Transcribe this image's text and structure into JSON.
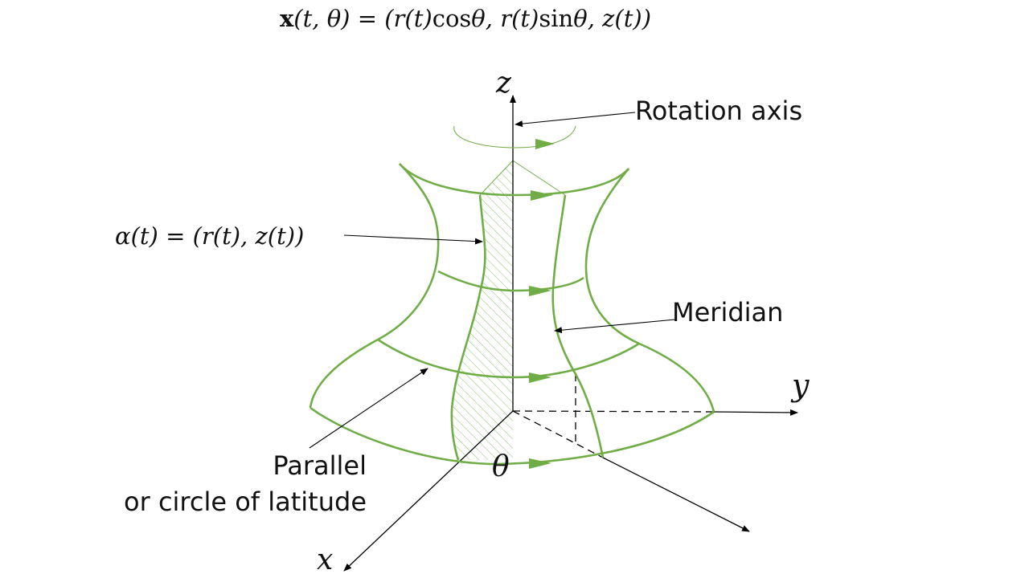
{
  "colors": {
    "accent": "#70ad47",
    "ink": "#000000"
  },
  "formula": {
    "bold_x": "x",
    "args": "(t, θ) = (",
    "r1": "r",
    "t1": "(t)",
    "cos": "cos",
    "theta1": "θ",
    "comma1": ", ",
    "r2": "r",
    "t2": "(t)",
    "sin": "sin",
    "theta2": "θ",
    "comma2": ", ",
    "z": "z",
    "tail": "(t))"
  },
  "axes": {
    "x": "x",
    "y": "y",
    "z": "z",
    "theta": "θ"
  },
  "labels": {
    "rotation_axis": "Rotation axis",
    "alpha_curve": "α(t) = (r(t), z(t))",
    "meridian": "Meridian",
    "parallel_line1": "Parallel",
    "parallel_line2": "or circle of latitude"
  }
}
